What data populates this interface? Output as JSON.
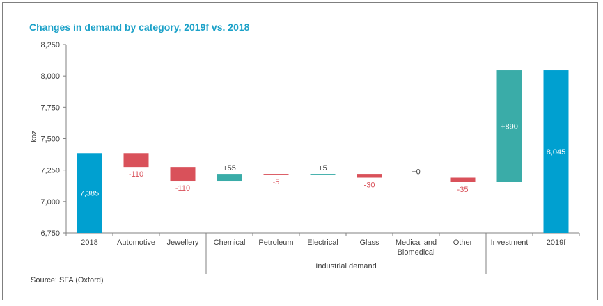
{
  "title": "Changes in demand by category, 2019f vs. 2018",
  "source": "Source: SFA (Oxford)",
  "colors": {
    "total": "#00a0d0",
    "increase": "#3aaca8",
    "decrease": "#d9515a",
    "title": "#1ba1c8",
    "text": "#404040",
    "axis": "#808080"
  },
  "chart_data": {
    "type": "waterfall",
    "title": "Changes in demand by category, 2019f vs. 2018",
    "ylabel": "koz",
    "ylim": [
      6750,
      8250
    ],
    "yticks": [
      6750,
      7000,
      7250,
      7500,
      7750,
      8000,
      8250
    ],
    "ytick_labels": [
      "6,750",
      "7,000",
      "7,250",
      "7,500",
      "7,750",
      "8,000",
      "8,250"
    ],
    "categories": [
      "2018",
      "Automotive",
      "Jewellery",
      "Chemical",
      "Petroleum",
      "Electrical",
      "Glass",
      "Medical and Biomedical",
      "Other",
      "Investment",
      "2019f"
    ],
    "category_lines": [
      [
        "2018"
      ],
      [
        "Automotive"
      ],
      [
        "Jewellery"
      ],
      [
        "Chemical"
      ],
      [
        "Petroleum"
      ],
      [
        "Electrical"
      ],
      [
        "Glass"
      ],
      [
        "Medical and",
        "Biomedical"
      ],
      [
        "Other"
      ],
      [
        "Investment"
      ],
      [
        "2019f"
      ]
    ],
    "values": [
      7385,
      -110,
      -110,
      55,
      -5,
      5,
      -30,
      0,
      -35,
      890,
      8045
    ],
    "kinds": [
      "total",
      "decrease",
      "decrease",
      "increase",
      "decrease",
      "increase",
      "decrease",
      "increase",
      "decrease",
      "increase",
      "total"
    ],
    "labels": [
      "7,385",
      "-110",
      "-110",
      "+55",
      "-5",
      "+5",
      "-30",
      "+0",
      "-35",
      "+890",
      "8,045"
    ],
    "group": {
      "label": "Industrial demand",
      "start": 3,
      "end": 8
    },
    "grid": false,
    "legend": "none"
  }
}
